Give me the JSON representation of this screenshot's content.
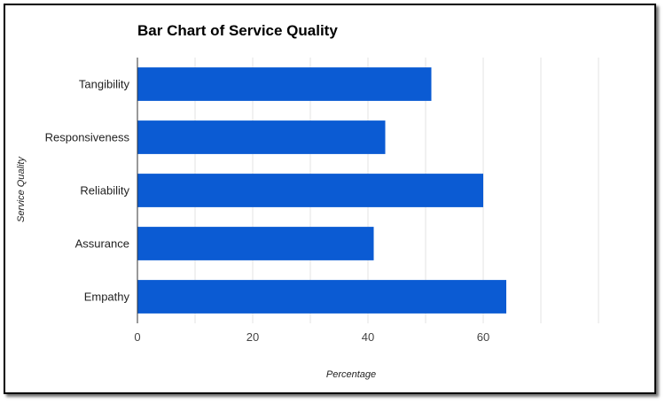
{
  "chart_data": {
    "type": "bar",
    "orientation": "horizontal",
    "title": "Bar Chart of Service Quality",
    "xlabel": "Percentage",
    "ylabel": "Service Quality",
    "categories": [
      "Tangibility",
      "Responsiveness",
      "Reliability",
      "Assurance",
      "Empathy"
    ],
    "values": [
      51,
      43,
      60,
      41,
      64
    ],
    "xlim": [
      0,
      80
    ],
    "xticks": [
      0,
      20,
      40,
      60
    ],
    "grid": true,
    "bar_color": "#0b5bd3"
  }
}
